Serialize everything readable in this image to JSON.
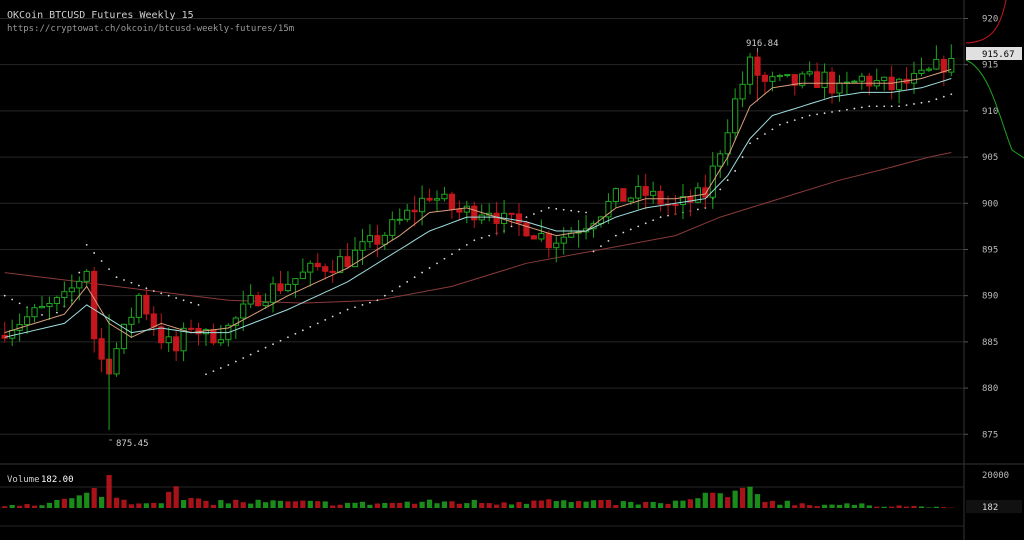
{
  "header": {
    "title": "OKCoin BTCUSD Futures Weekly 15",
    "url": "https://cryptowat.ch/okcoin/btcusd-weekly-futures/15m"
  },
  "colors": {
    "background": "#000000",
    "grid": "#262626",
    "up": "#1fa51f",
    "down": "#c4161c",
    "ema_fast": "#d8a07a",
    "ema_slow": "#9fdede",
    "sar": "#dddddd",
    "ema_long": "#8a3a3a",
    "text": "#bbbbbb",
    "current_price_bg": "#e0e0e0"
  },
  "chart_data": {
    "type": "candlestick",
    "price_axis": {
      "min": 872,
      "max": 922,
      "ticks": [
        875,
        880,
        885,
        890,
        895,
        900,
        905,
        910,
        915,
        920
      ]
    },
    "current_price_label": "915.67",
    "high_annotation": "916.84",
    "low_annotation": "875.45",
    "volume": {
      "label": "Volume",
      "value": "182.00",
      "axis_ticks": [
        "20000",
        "182"
      ],
      "max": 20000
    },
    "waypoints": {
      "close_path": [
        [
          0,
          886.5
        ],
        [
          8,
          889.5
        ],
        [
          11,
          893
        ],
        [
          12,
          885.5
        ],
        [
          13,
          883
        ],
        [
          14,
          882.5
        ],
        [
          16,
          886
        ],
        [
          18,
          890
        ],
        [
          21,
          885.5
        ],
        [
          23,
          884
        ],
        [
          25,
          887
        ],
        [
          27,
          885.5
        ],
        [
          30,
          886.5
        ],
        [
          34,
          890
        ],
        [
          38,
          891.5
        ],
        [
          42,
          893
        ],
        [
          46,
          894
        ],
        [
          49,
          895.5
        ],
        [
          53,
          898
        ],
        [
          57,
          901
        ],
        [
          61,
          899
        ],
        [
          65,
          899.5
        ],
        [
          67,
          898
        ],
        [
          70,
          897.5
        ],
        [
          73,
          896
        ],
        [
          75,
          896.5
        ],
        [
          78,
          898
        ],
        [
          82,
          900.5
        ],
        [
          86,
          901
        ],
        [
          90,
          899.5
        ],
        [
          94,
          901
        ],
        [
          96,
          906
        ],
        [
          98,
          911
        ],
        [
          100,
          915
        ],
        [
          102,
          913
        ],
        [
          106,
          913
        ],
        [
          110,
          913.5
        ],
        [
          112,
          912
        ],
        [
          115,
          913.5
        ],
        [
          119,
          912.5
        ],
        [
          123,
          913.5
        ],
        [
          127,
          915.67
        ]
      ],
      "ema_fast_path": [
        [
          0,
          886
        ],
        [
          8,
          888
        ],
        [
          11,
          891
        ],
        [
          14,
          887
        ],
        [
          17,
          885.5
        ],
        [
          21,
          887
        ],
        [
          25,
          886
        ],
        [
          30,
          886.5
        ],
        [
          38,
          890
        ],
        [
          46,
          893
        ],
        [
          53,
          896.5
        ],
        [
          57,
          899
        ],
        [
          62,
          899.5
        ],
        [
          66,
          898.5
        ],
        [
          70,
          897.5
        ],
        [
          74,
          896.5
        ],
        [
          78,
          897
        ],
        [
          82,
          899.5
        ],
        [
          86,
          900.5
        ],
        [
          90,
          900.5
        ],
        [
          94,
          901
        ],
        [
          97,
          905
        ],
        [
          100,
          910.5
        ],
        [
          103,
          912.5
        ],
        [
          107,
          913
        ],
        [
          111,
          913
        ],
        [
          115,
          913
        ],
        [
          119,
          913
        ],
        [
          123,
          913.5
        ],
        [
          127,
          914.5
        ]
      ],
      "ema_slow_path": [
        [
          0,
          885.5
        ],
        [
          8,
          887
        ],
        [
          11,
          889
        ],
        [
          14,
          887.5
        ],
        [
          17,
          886
        ],
        [
          21,
          886.5
        ],
        [
          25,
          886
        ],
        [
          30,
          886
        ],
        [
          38,
          888.5
        ],
        [
          46,
          891.5
        ],
        [
          53,
          895
        ],
        [
          57,
          897
        ],
        [
          62,
          898.5
        ],
        [
          66,
          898.5
        ],
        [
          70,
          898
        ],
        [
          74,
          897
        ],
        [
          78,
          897
        ],
        [
          82,
          898.5
        ],
        [
          86,
          899.5
        ],
        [
          90,
          900
        ],
        [
          94,
          900.5
        ],
        [
          97,
          903
        ],
        [
          100,
          907
        ],
        [
          103,
          909.5
        ],
        [
          107,
          910.5
        ],
        [
          111,
          911.5
        ],
        [
          115,
          912
        ],
        [
          119,
          912
        ],
        [
          123,
          912.5
        ],
        [
          127,
          913.5
        ]
      ],
      "sar_path": [
        [
          0,
          890
        ],
        [
          6,
          887.5
        ],
        [
          9,
          889.5
        ],
        [
          11,
          895.5
        ],
        [
          15,
          892
        ],
        [
          20,
          890.5
        ],
        [
          26,
          889
        ],
        [
          27,
          881.5
        ],
        [
          30,
          882.5
        ],
        [
          34,
          884
        ],
        [
          38,
          885.5
        ],
        [
          42,
          887
        ],
        [
          46,
          888.5
        ],
        [
          50,
          889.5
        ],
        [
          54,
          891.5
        ],
        [
          58,
          893.5
        ],
        [
          63,
          896
        ],
        [
          67,
          897
        ],
        [
          70,
          898.5
        ],
        [
          73,
          899.5
        ],
        [
          78,
          899
        ],
        [
          78.5,
          894.5
        ],
        [
          82,
          896.5
        ],
        [
          88,
          898.5
        ],
        [
          94,
          899.5
        ],
        [
          98,
          903.5
        ],
        [
          100,
          906.5
        ],
        [
          104,
          908.5
        ],
        [
          108,
          909.5
        ],
        [
          112,
          910
        ],
        [
          116,
          910.5
        ],
        [
          120,
          910.5
        ],
        [
          124,
          911
        ],
        [
          127,
          911.8
        ]
      ],
      "ema_long_path": [
        [
          0,
          892.5
        ],
        [
          10,
          891.5
        ],
        [
          20,
          890.5
        ],
        [
          30,
          889.5
        ],
        [
          40,
          889.2
        ],
        [
          50,
          889.5
        ],
        [
          60,
          891
        ],
        [
          70,
          893.5
        ],
        [
          80,
          895
        ],
        [
          90,
          896.5
        ],
        [
          96,
          898.5
        ],
        [
          100,
          899.5
        ],
        [
          106,
          901
        ],
        [
          112,
          902.5
        ],
        [
          118,
          903.7
        ],
        [
          124,
          905
        ],
        [
          127,
          905.5
        ]
      ],
      "volume_path": [
        [
          0,
          1500
        ],
        [
          6,
          3000
        ],
        [
          10,
          5500
        ],
        [
          12,
          8500
        ],
        [
          13,
          11500
        ],
        [
          14,
          16000
        ],
        [
          15,
          5500
        ],
        [
          18,
          3000
        ],
        [
          22,
          6500
        ],
        [
          23,
          9500
        ],
        [
          24,
          5000
        ],
        [
          26,
          3500
        ],
        [
          30,
          3500
        ],
        [
          40,
          3000
        ],
        [
          48,
          2500
        ],
        [
          55,
          3000
        ],
        [
          60,
          3500
        ],
        [
          66,
          3000
        ],
        [
          70,
          4000
        ],
        [
          72,
          7000
        ],
        [
          74,
          3500
        ],
        [
          80,
          3000
        ],
        [
          88,
          2500
        ],
        [
          93,
          4500
        ],
        [
          95,
          8000
        ],
        [
          97,
          6500
        ],
        [
          99,
          7500
        ],
        [
          100,
          9500
        ],
        [
          102,
          5000
        ],
        [
          104,
          3500
        ],
        [
          108,
          2000
        ],
        [
          114,
          1800
        ],
        [
          120,
          1200
        ],
        [
          127,
          182
        ]
      ]
    }
  }
}
